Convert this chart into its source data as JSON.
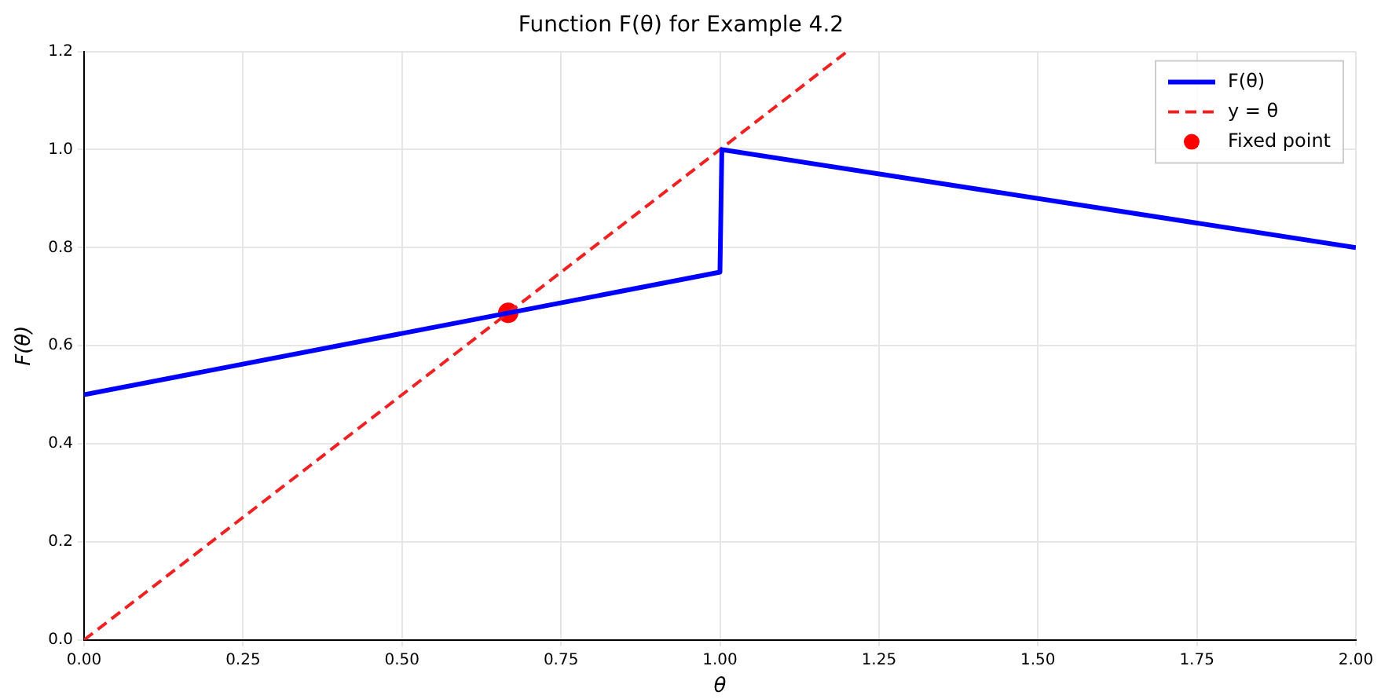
{
  "chart_data": {
    "type": "line",
    "title": "Function F(θ) for Example 4.2",
    "xlabel": "θ",
    "ylabel": "F(θ)",
    "xlim": [
      0,
      2
    ],
    "xticks": [
      {
        "value": 0,
        "label": "0.00"
      },
      {
        "value": 0.25,
        "label": "0.25"
      },
      {
        "value": 0.5,
        "label": "0.50"
      },
      {
        "value": 0.75,
        "label": "0.75"
      },
      {
        "value": 1,
        "label": "1.00"
      },
      {
        "value": 1.25,
        "label": "1.25"
      },
      {
        "value": 1.5,
        "label": "1.50"
      },
      {
        "value": 1.75,
        "label": "1.75"
      },
      {
        "value": 2,
        "label": "2.00"
      }
    ],
    "ylim": [
      0,
      1.2
    ],
    "yticks": [
      {
        "value": 0,
        "label": "0.0"
      },
      {
        "value": 0.2,
        "label": "0.2"
      },
      {
        "value": 0.4,
        "label": "0.4"
      },
      {
        "value": 0.6,
        "label": "0.6"
      },
      {
        "value": 0.8,
        "label": "0.8"
      },
      {
        "value": 1,
        "label": "1.0"
      },
      {
        "value": 1.2,
        "label": "1.2"
      }
    ],
    "grid": true,
    "legend": "top right",
    "series": [
      {
        "name": "F(θ)",
        "type": "line",
        "color": "#0000ff",
        "line_style": "solid",
        "marker": "none",
        "x": [
          0,
          1,
          1.003,
          2
        ],
        "values": [
          0.5,
          0.75,
          1.0,
          0.8
        ]
      },
      {
        "name": "y = θ",
        "type": "line",
        "color": "#ee2222",
        "line_style": "dashed",
        "marker": "none",
        "x": [
          0,
          1.2
        ],
        "values": [
          0,
          1.2
        ]
      },
      {
        "name": "Fixed point",
        "type": "scatter",
        "color": "#ff0000",
        "marker": "circle",
        "x": [
          0.667
        ],
        "values": [
          0.667
        ]
      }
    ]
  }
}
